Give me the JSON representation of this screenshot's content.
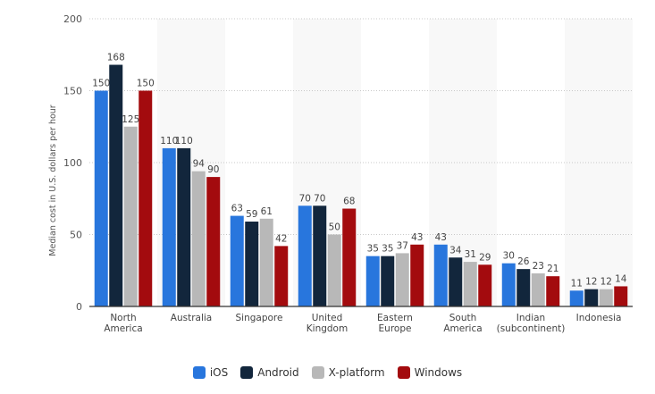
{
  "chart_data": {
    "type": "bar",
    "title": "",
    "xlabel": "",
    "ylabel": "Median cost in U.S. dollars per hour",
    "ylim": [
      0,
      200
    ],
    "yticks": [
      0,
      50,
      100,
      150,
      200
    ],
    "grid": true,
    "legend_position": "bottom",
    "categories": [
      [
        "North",
        "America"
      ],
      [
        "Australia"
      ],
      [
        "Singapore"
      ],
      [
        "United",
        "Kingdom"
      ],
      [
        "Eastern",
        "Europe"
      ],
      [
        "South",
        "America"
      ],
      [
        "Indian",
        "(subcontinent)"
      ],
      [
        "Indonesia"
      ]
    ],
    "series": [
      {
        "name": "iOS",
        "color": "#2876dd",
        "values": [
          150,
          110,
          63,
          70,
          35,
          43,
          30,
          11
        ]
      },
      {
        "name": "Android",
        "color": "#12263c",
        "values": [
          168,
          110,
          59,
          70,
          35,
          34,
          26,
          12
        ]
      },
      {
        "name": "X-platform",
        "color": "#b8b8b8",
        "values": [
          125,
          94,
          61,
          50,
          37,
          31,
          23,
          12
        ]
      },
      {
        "name": "Windows",
        "color": "#a30b0e",
        "values": [
          150,
          90,
          42,
          68,
          43,
          29,
          21,
          14
        ]
      }
    ]
  },
  "legend": {
    "items": [
      {
        "label": "iOS",
        "color": "#2876dd"
      },
      {
        "label": "Android",
        "color": "#12263c"
      },
      {
        "label": "X-platform",
        "color": "#b8b8b8"
      },
      {
        "label": "Windows",
        "color": "#a30b0e"
      }
    ]
  }
}
